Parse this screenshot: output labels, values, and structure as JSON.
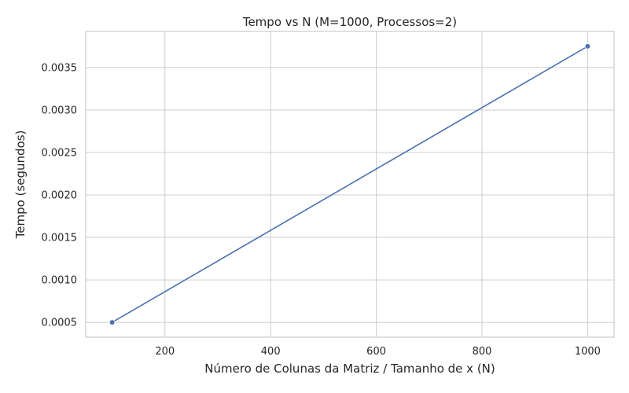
{
  "chart_data": {
    "type": "line",
    "title": "Tempo vs N (M=1000, Processos=2)",
    "xlabel": "Número de Colunas da Matriz / Tamanho de x (N)",
    "ylabel": "Tempo (segundos)",
    "xlim": [
      50,
      1050
    ],
    "ylim": [
      0.000325,
      0.003925
    ],
    "xticks": [
      200,
      400,
      600,
      800,
      1000
    ],
    "xtick_labels": [
      "200",
      "400",
      "600",
      "800",
      "1000"
    ],
    "yticks": [
      0.0005,
      0.001,
      0.0015,
      0.002,
      0.0025,
      0.003,
      0.0035
    ],
    "ytick_labels": [
      "0.0005",
      "0.0010",
      "0.0015",
      "0.0020",
      "0.0025",
      "0.0030",
      "0.0035"
    ],
    "grid": true,
    "series": [
      {
        "x": [
          100,
          1000
        ],
        "y": [
          0.0005,
          0.00375
        ],
        "color": "#4c72b0",
        "marker": "circle"
      }
    ]
  }
}
